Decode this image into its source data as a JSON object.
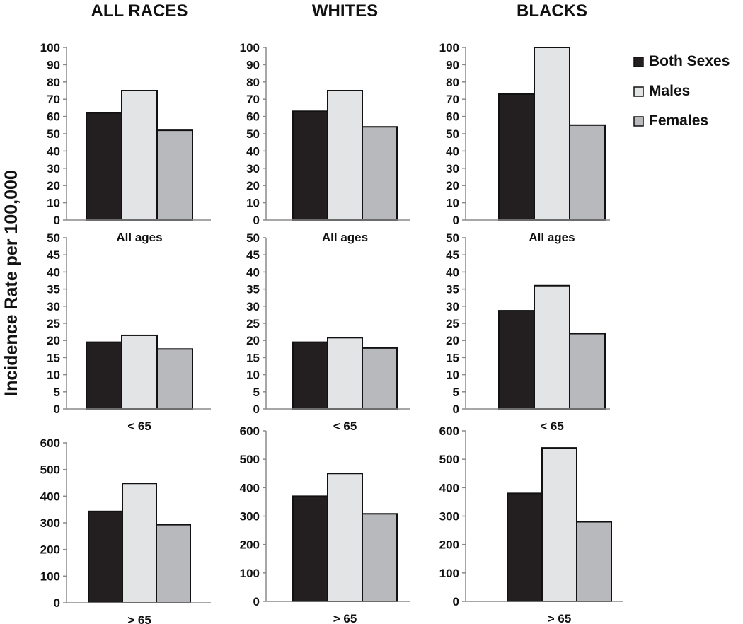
{
  "ylabel": "Incidence Rate per 100,000",
  "colors": {
    "both": "#231f20",
    "males": "#e3e4e6",
    "females": "#b8b9bc",
    "stroke": "#111111",
    "axis": "#8a8a8a"
  },
  "legend": [
    {
      "key": "both",
      "label": "Both Sexes"
    },
    {
      "key": "males",
      "label": "Males"
    },
    {
      "key": "females",
      "label": "Females"
    }
  ],
  "chart_data": [
    {
      "type": "bar",
      "title": "ALL RACES",
      "xlabel": "All ages",
      "ylim": [
        0,
        100
      ],
      "yticks": [
        "0",
        "10",
        "20",
        "30",
        "40",
        "50",
        "60",
        "70",
        "80",
        "90",
        "100"
      ],
      "values": [
        62,
        75,
        52
      ]
    },
    {
      "type": "bar",
      "title": "WHITES",
      "xlabel": "All ages",
      "ylim": [
        0,
        100
      ],
      "yticks": [
        "0",
        "10",
        "20",
        "30",
        "40",
        "50",
        "60",
        "70",
        "80",
        "90",
        "100"
      ],
      "values": [
        63,
        75,
        54
      ]
    },
    {
      "type": "bar",
      "title": "BLACKS",
      "xlabel": "All ages",
      "ylim": [
        0,
        100
      ],
      "yticks": [
        "0",
        "10",
        "20",
        "30",
        "40",
        "50",
        "60",
        "70",
        "80",
        "90",
        "100"
      ],
      "values": [
        73,
        100,
        55
      ]
    },
    {
      "type": "bar",
      "title": "",
      "xlabel": "< 65",
      "ylim": [
        0,
        50
      ],
      "yticks": [
        "0",
        "5",
        "10",
        "15",
        "20",
        "25",
        "30",
        "35",
        "40",
        "45",
        "50"
      ],
      "values": [
        19.5,
        21.5,
        17.5
      ]
    },
    {
      "type": "bar",
      "title": "",
      "xlabel": "< 65",
      "ylim": [
        0,
        50
      ],
      "yticks": [
        "0",
        "5",
        "10",
        "15",
        "20",
        "25",
        "30",
        "35",
        "40",
        "45",
        "50"
      ],
      "values": [
        19.5,
        20.8,
        17.8
      ]
    },
    {
      "type": "bar",
      "title": "",
      "xlabel": "< 65",
      "ylim": [
        0,
        50
      ],
      "yticks": [
        "0",
        "5",
        "10",
        "15",
        "20",
        "25",
        "30",
        "35",
        "40",
        "45",
        "50"
      ],
      "values": [
        28.7,
        36,
        22
      ]
    },
    {
      "type": "bar",
      "title": "",
      "xlabel": "> 65",
      "ylim": [
        0,
        600
      ],
      "yticks": [
        "0",
        "100",
        "200",
        "300",
        "400",
        "500",
        "600"
      ],
      "values": [
        343,
        448,
        293
      ]
    },
    {
      "type": "bar",
      "title": "",
      "xlabel": "> 65",
      "ylim": [
        0,
        600
      ],
      "yticks": [
        "0",
        "100",
        "200",
        "300",
        "400",
        "500",
        "600"
      ],
      "values": [
        370,
        450,
        308
      ]
    },
    {
      "type": "bar",
      "title": "",
      "xlabel": "> 65",
      "ylim": [
        0,
        600
      ],
      "yticks": [
        "0",
        "100",
        "200",
        "300",
        "400",
        "500",
        "600"
      ],
      "values": [
        380,
        540,
        280
      ]
    }
  ]
}
